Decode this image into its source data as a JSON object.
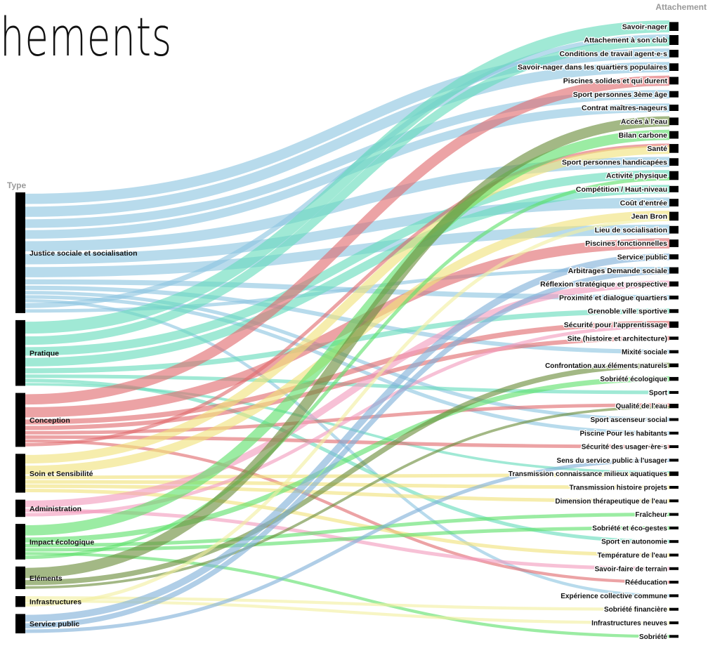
{
  "title": "hements",
  "diagram": {
    "left_header": "Type",
    "right_header": "Attachement",
    "colors": [
      "#8cc5e0",
      "#66dbbc",
      "#e06a6e",
      "#f0e27a",
      "#f29bbd",
      "#5ee06a",
      "#6a8c3a",
      "#f2efa0",
      "#7fb0d8"
    ],
    "sources": [
      {
        "label": "Justice sociale et socialisation",
        "color": "#8cc5e0"
      },
      {
        "label": "Pratique",
        "color": "#66dbbc"
      },
      {
        "label": "Conception",
        "color": "#e06a6e"
      },
      {
        "label": "Soin et Sensibilité",
        "color": "#f0e27a"
      },
      {
        "label": "Administration",
        "color": "#f29bbd"
      },
      {
        "label": "Impact écologique",
        "color": "#5ee06a"
      },
      {
        "label": "Eléments",
        "color": "#6a8c3a"
      },
      {
        "label": "Infrastructures",
        "color": "#f2efa0"
      },
      {
        "label": "Service public",
        "color": "#7fb0d8"
      }
    ],
    "targets": [
      {
        "label": "Savoir-nager",
        "source": 1
      },
      {
        "label": "Attachement à son club",
        "source": 1
      },
      {
        "label": "Conditions de travail agent·e·s",
        "source": 0
      },
      {
        "label": "Savoir-nager dans les quartiers populaires",
        "source": 0
      },
      {
        "label": "Piscines solides et qui durent",
        "source": 2
      },
      {
        "label": "Sport personnes 3ème âge",
        "source": 0
      },
      {
        "label": "Contrat maîtres-nageurs",
        "source": 0
      },
      {
        "label": "Accès à l'eau",
        "source": 6
      },
      {
        "label": "Bilan carbone",
        "source": 5
      },
      {
        "label": "Santé",
        "source": 3
      },
      {
        "label": "Sport personnes handicapées",
        "source": 0
      },
      {
        "label": "Activité physique",
        "source": 1
      },
      {
        "label": "Compétition / Haut-niveau",
        "source": 1
      },
      {
        "label": "Coût d'entrée",
        "source": 0
      },
      {
        "label": "Jean Bron",
        "source": 3
      },
      {
        "label": "Lieu de socialisation",
        "source": 0
      },
      {
        "label": "Piscines fonctionnelles",
        "source": 2
      },
      {
        "label": "Service public",
        "source": 8
      },
      {
        "label": "Arbitrages Demande sociale",
        "source": 8
      },
      {
        "label": "Réflexion stratégique et prospective",
        "source": 4
      },
      {
        "label": "Proximité et dialogue quartiers",
        "source": 0
      },
      {
        "label": "Grenoble ville sportive",
        "source": 1
      },
      {
        "label": "Sécurité pour l'apprentissage",
        "source": 2
      },
      {
        "label": "Site (histoire et architecture)",
        "source": 2
      },
      {
        "label": "Mixité sociale",
        "source": 0
      },
      {
        "label": "Confrontation aux éléments naturels",
        "source": 6
      },
      {
        "label": "Sobriété écologique",
        "source": 5
      },
      {
        "label": "Sport",
        "source": 1
      },
      {
        "label": "Qualité de l'eau",
        "source": 2
      },
      {
        "label": "Sport ascenseur social",
        "source": 0
      },
      {
        "label": "Piscine Pour les habitants",
        "source": 0
      },
      {
        "label": "Sécurité des usager·ère·s",
        "source": 2
      },
      {
        "label": "Sens du service public à l'usager",
        "source": 8
      },
      {
        "label": "Transmission connaissance milieux aquatiques",
        "source": 3
      },
      {
        "label": "Transmission histoire projets",
        "source": 3
      },
      {
        "label": "Dimension thérapeutique de l'eau",
        "source": 3
      },
      {
        "label": "Fraîcheur",
        "source": 5
      },
      {
        "label": "Sobriété et éco-gestes",
        "source": 5
      },
      {
        "label": "Sport en autonomie",
        "source": 1
      },
      {
        "label": "Température de l'eau",
        "source": 3
      },
      {
        "label": "Savoir-faire de terrain",
        "source": 4
      },
      {
        "label": "Rééducation",
        "source": 2
      },
      {
        "label": "Expérience collective commune",
        "source": 0
      },
      {
        "label": "Sobriété financière",
        "source": 7
      },
      {
        "label": "Infrastructures neuves",
        "source": 7
      },
      {
        "label": "Sobriété",
        "source": 5
      }
    ],
    "links": [
      {
        "s": 0,
        "t": 2,
        "w": 12
      },
      {
        "s": 0,
        "t": 3,
        "w": 12
      },
      {
        "s": 0,
        "t": 5,
        "w": 10
      },
      {
        "s": 0,
        "t": 6,
        "w": 10
      },
      {
        "s": 0,
        "t": 10,
        "w": 12
      },
      {
        "s": 0,
        "t": 13,
        "w": 12
      },
      {
        "s": 0,
        "t": 15,
        "w": 12
      },
      {
        "s": 0,
        "t": 20,
        "w": 6
      },
      {
        "s": 0,
        "t": 24,
        "w": 5
      },
      {
        "s": 0,
        "t": 29,
        "w": 4
      },
      {
        "s": 0,
        "t": 30,
        "w": 4
      },
      {
        "s": 0,
        "t": 42,
        "w": 3
      },
      {
        "s": 0,
        "t": 1,
        "w": 6
      },
      {
        "s": 0,
        "t": 18,
        "w": 4
      },
      {
        "s": 1,
        "t": 0,
        "w": 14
      },
      {
        "s": 1,
        "t": 1,
        "w": 10
      },
      {
        "s": 1,
        "t": 11,
        "w": 10
      },
      {
        "s": 1,
        "t": 12,
        "w": 10
      },
      {
        "s": 1,
        "t": 21,
        "w": 6
      },
      {
        "s": 1,
        "t": 27,
        "w": 4
      },
      {
        "s": 1,
        "t": 38,
        "w": 4
      },
      {
        "s": 1,
        "t": 33,
        "w": 3
      },
      {
        "s": 2,
        "t": 4,
        "w": 12
      },
      {
        "s": 2,
        "t": 16,
        "w": 12
      },
      {
        "s": 2,
        "t": 22,
        "w": 6
      },
      {
        "s": 2,
        "t": 23,
        "w": 5
      },
      {
        "s": 2,
        "t": 28,
        "w": 4
      },
      {
        "s": 2,
        "t": 31,
        "w": 4
      },
      {
        "s": 2,
        "t": 41,
        "w": 3
      },
      {
        "s": 2,
        "t": 9,
        "w": 4
      },
      {
        "s": 3,
        "t": 9,
        "w": 10
      },
      {
        "s": 3,
        "t": 14,
        "w": 10
      },
      {
        "s": 3,
        "t": 33,
        "w": 4
      },
      {
        "s": 3,
        "t": 34,
        "w": 4
      },
      {
        "s": 3,
        "t": 35,
        "w": 4
      },
      {
        "s": 3,
        "t": 39,
        "w": 4
      },
      {
        "s": 4,
        "t": 19,
        "w": 8
      },
      {
        "s": 4,
        "t": 40,
        "w": 4
      },
      {
        "s": 4,
        "t": 22,
        "w": 4
      },
      {
        "s": 5,
        "t": 8,
        "w": 12
      },
      {
        "s": 5,
        "t": 26,
        "w": 6
      },
      {
        "s": 5,
        "t": 36,
        "w": 4
      },
      {
        "s": 5,
        "t": 37,
        "w": 4
      },
      {
        "s": 5,
        "t": 45,
        "w": 3
      },
      {
        "s": 5,
        "t": 11,
        "w": 4
      },
      {
        "s": 6,
        "t": 7,
        "w": 12
      },
      {
        "s": 6,
        "t": 25,
        "w": 6
      },
      {
        "s": 6,
        "t": 28,
        "w": 3
      },
      {
        "s": 7,
        "t": 43,
        "w": 3
      },
      {
        "s": 7,
        "t": 44,
        "w": 3
      },
      {
        "s": 7,
        "t": 14,
        "w": 4
      },
      {
        "s": 8,
        "t": 17,
        "w": 8
      },
      {
        "s": 8,
        "t": 18,
        "w": 6
      },
      {
        "s": 8,
        "t": 32,
        "w": 4
      }
    ]
  }
}
